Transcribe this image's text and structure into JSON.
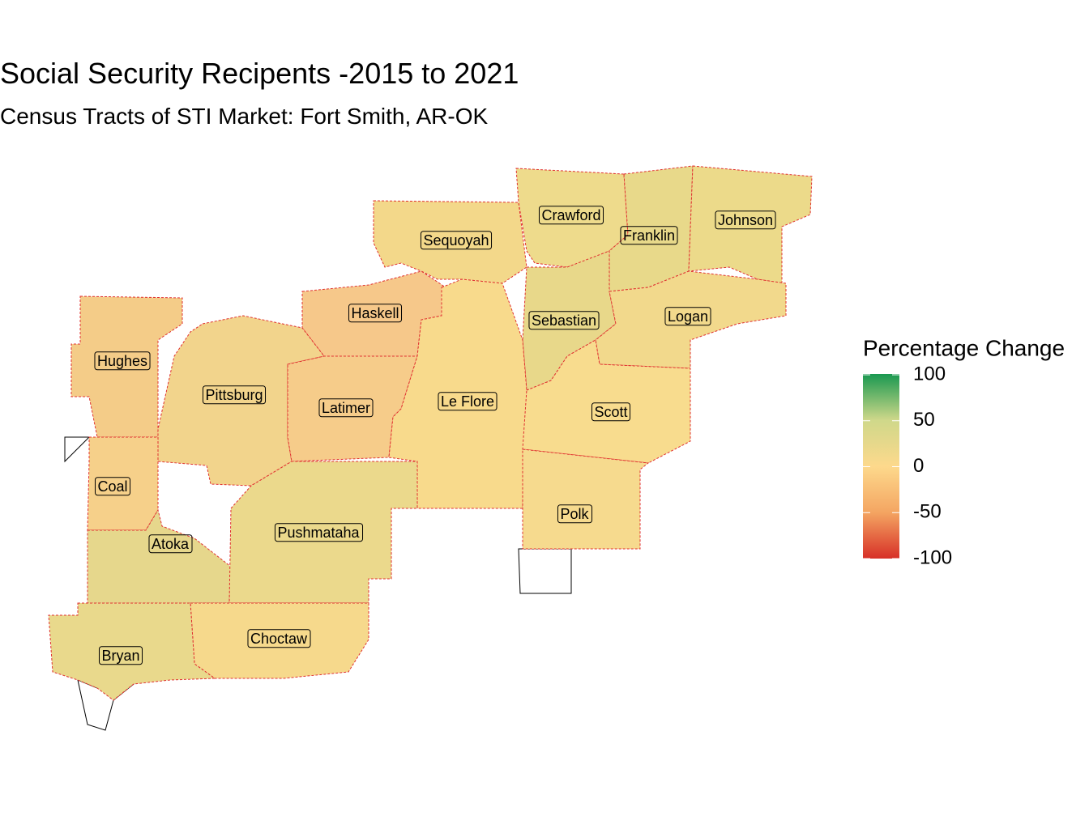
{
  "title": "Social Security Recipents -2015 to 2021",
  "subtitle": "Census Tracts of STI Market: Fort Smith, AR-OK",
  "legend": {
    "title": "Percentage Change",
    "limits": [
      -100,
      100
    ],
    "ticks": [
      100,
      50,
      0,
      -50,
      -100
    ],
    "colors": [
      "#d73027",
      "#f4a562",
      "#fdd98c",
      "#cfd88a",
      "#1a9850"
    ]
  },
  "counties": [
    "Crawford",
    "Franklin",
    "Johnson",
    "Sequoyah",
    "Sebastian",
    "Logan",
    "Haskell",
    "Hughes",
    "Pittsburg",
    "Latimer",
    "Le Flore",
    "Scott",
    "Coal",
    "Polk",
    "Atoka",
    "Pushmataha",
    "Choctaw",
    "Bryan"
  ]
}
